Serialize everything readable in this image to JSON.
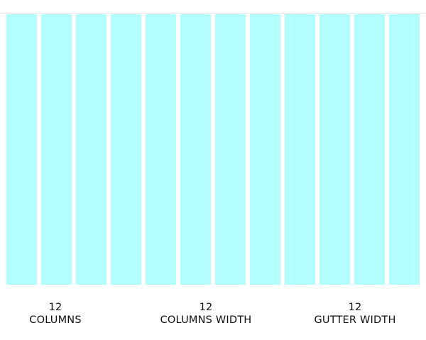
{
  "colors": {
    "column_fill": "#b3fffe",
    "gutter": "#ffffff",
    "text": "#111111"
  },
  "grid": {
    "column_count": 12
  },
  "labels": [
    {
      "number": "12",
      "text": "COLUMNS"
    },
    {
      "number": "12",
      "text": "COLUMNS WIDTH"
    },
    {
      "number": "12",
      "text": "GUTTER WIDTH"
    }
  ]
}
